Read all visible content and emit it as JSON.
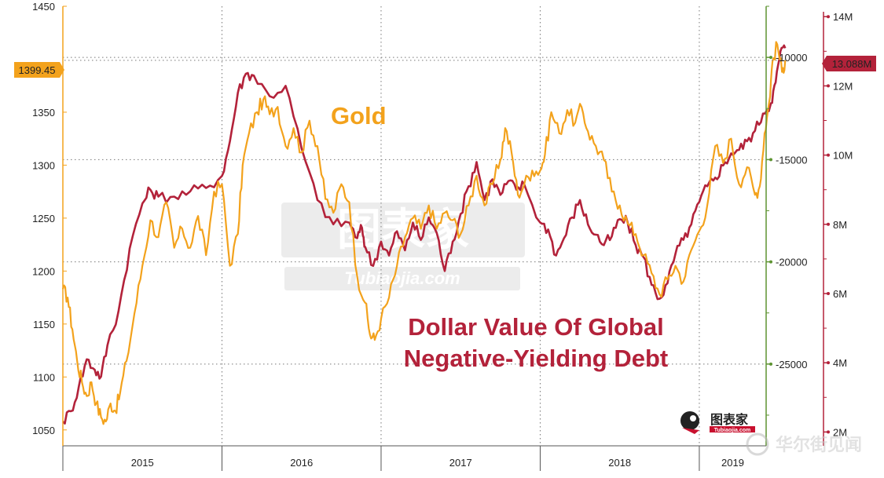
{
  "chart_data": {
    "type": "line",
    "x_axis": {
      "year_labels": [
        "2015",
        "2016",
        "2017",
        "2018",
        "2019"
      ],
      "range": [
        2015.0,
        2019.42
      ]
    },
    "axes": {
      "left": {
        "ticks": [
          "1050",
          "1100",
          "1150",
          "1200",
          "1250",
          "1300",
          "1350",
          "1450"
        ],
        "range": [
          1035,
          1450
        ]
      },
      "right_green": {
        "ticks": [
          "-10000",
          "-15000",
          "-20000",
          "-25000"
        ],
        "range": [
          -29000,
          -7500
        ]
      },
      "right_red": {
        "ticks": [
          "2M",
          "4M",
          "6M",
          "8M",
          "10M",
          "12M",
          "14M"
        ],
        "range": [
          1.6,
          14.3
        ]
      }
    },
    "price_tags": {
      "gold": "1399.45",
      "debt": "13.088M"
    },
    "colors": {
      "gold": "#F3A21C",
      "debt": "#B3223A",
      "green_axis": "#5E9432",
      "grid": "#777777"
    },
    "series": [
      {
        "name": "Gold",
        "axis": "left",
        "points": [
          [
            2015.0,
            1183
          ],
          [
            2015.03,
            1175
          ],
          [
            2015.06,
            1145
          ],
          [
            2015.09,
            1115
          ],
          [
            2015.12,
            1095
          ],
          [
            2015.15,
            1082
          ],
          [
            2015.18,
            1095
          ],
          [
            2015.21,
            1075
          ],
          [
            2015.24,
            1062
          ],
          [
            2015.27,
            1058
          ],
          [
            2015.3,
            1075
          ],
          [
            2015.33,
            1068
          ],
          [
            2015.36,
            1085
          ],
          [
            2015.4,
            1115
          ],
          [
            2015.45,
            1160
          ],
          [
            2015.5,
            1205
          ],
          [
            2015.55,
            1248
          ],
          [
            2015.6,
            1232
          ],
          [
            2015.65,
            1265
          ],
          [
            2015.7,
            1222
          ],
          [
            2015.75,
            1240
          ],
          [
            2015.8,
            1222
          ],
          [
            2015.85,
            1252
          ],
          [
            2015.9,
            1215
          ],
          [
            2015.95,
            1275
          ],
          [
            2016.0,
            1282
          ],
          [
            2016.05,
            1205
          ],
          [
            2016.1,
            1235
          ],
          [
            2016.13,
            1300
          ],
          [
            2016.17,
            1330
          ],
          [
            2016.22,
            1350
          ],
          [
            2016.26,
            1362
          ],
          [
            2016.3,
            1348
          ],
          [
            2016.35,
            1355
          ],
          [
            2016.4,
            1318
          ],
          [
            2016.45,
            1335
          ],
          [
            2016.5,
            1312
          ],
          [
            2016.55,
            1342
          ],
          [
            2016.6,
            1318
          ],
          [
            2016.65,
            1268
          ],
          [
            2016.7,
            1255
          ],
          [
            2016.75,
            1282
          ],
          [
            2016.8,
            1265
          ],
          [
            2016.85,
            1195
          ],
          [
            2016.9,
            1170
          ],
          [
            2016.93,
            1140
          ],
          [
            2016.96,
            1135
          ],
          [
            2017.0,
            1155
          ],
          [
            2017.05,
            1175
          ],
          [
            2017.1,
            1205
          ],
          [
            2017.15,
            1232
          ],
          [
            2017.2,
            1250
          ],
          [
            2017.25,
            1240
          ],
          [
            2017.3,
            1262
          ],
          [
            2017.35,
            1240
          ],
          [
            2017.4,
            1255
          ],
          [
            2017.45,
            1248
          ],
          [
            2017.5,
            1235
          ],
          [
            2017.55,
            1262
          ],
          [
            2017.6,
            1290
          ],
          [
            2017.65,
            1262
          ],
          [
            2017.7,
            1282
          ],
          [
            2017.75,
            1305
          ],
          [
            2017.78,
            1335
          ],
          [
            2017.82,
            1312
          ],
          [
            2017.86,
            1272
          ],
          [
            2017.9,
            1282
          ],
          [
            2017.95,
            1295
          ],
          [
            2018.0,
            1295
          ],
          [
            2018.03,
            1310
          ],
          [
            2018.07,
            1350
          ],
          [
            2018.12,
            1330
          ],
          [
            2018.17,
            1352
          ],
          [
            2018.22,
            1340
          ],
          [
            2018.26,
            1355
          ],
          [
            2018.3,
            1332
          ],
          [
            2018.35,
            1318
          ],
          [
            2018.4,
            1305
          ],
          [
            2018.45,
            1275
          ],
          [
            2018.5,
            1262
          ],
          [
            2018.55,
            1245
          ],
          [
            2018.6,
            1235
          ],
          [
            2018.65,
            1215
          ],
          [
            2018.7,
            1198
          ],
          [
            2018.75,
            1178
          ],
          [
            2018.8,
            1192
          ],
          [
            2018.85,
            1205
          ],
          [
            2018.9,
            1190
          ],
          [
            2018.95,
            1220
          ],
          [
            2019.0,
            1238
          ],
          [
            2019.05,
            1262
          ],
          [
            2019.1,
            1318
          ],
          [
            2019.15,
            1302
          ],
          [
            2019.2,
            1325
          ],
          [
            2019.25,
            1282
          ],
          [
            2019.3,
            1298
          ],
          [
            2019.35,
            1272
          ],
          [
            2019.38,
            1280
          ],
          [
            2019.41,
            1330
          ],
          [
            2019.44,
            1360
          ],
          [
            2019.46,
            1398
          ],
          [
            2019.49,
            1414
          ],
          [
            2019.52,
            1388
          ],
          [
            2019.54,
            1399
          ]
        ]
      },
      {
        "name": "Dollar Value Of Global Negative-Yielding Debt",
        "axis": "right_red",
        "points": [
          [
            2015.0,
            2.3
          ],
          [
            2015.05,
            2.6
          ],
          [
            2015.1,
            3.3
          ],
          [
            2015.15,
            4.1
          ],
          [
            2015.2,
            3.8
          ],
          [
            2015.24,
            3.6
          ],
          [
            2015.28,
            4.5
          ],
          [
            2015.35,
            5.5
          ],
          [
            2015.42,
            7.3
          ],
          [
            2015.5,
            8.6
          ],
          [
            2015.55,
            9.0
          ],
          [
            2015.6,
            8.8
          ],
          [
            2015.7,
            8.8
          ],
          [
            2015.8,
            8.95
          ],
          [
            2015.9,
            9.05
          ],
          [
            2016.0,
            9.4
          ],
          [
            2016.05,
            10.4
          ],
          [
            2016.1,
            11.8
          ],
          [
            2016.15,
            12.35
          ],
          [
            2016.2,
            12.3
          ],
          [
            2016.3,
            11.7
          ],
          [
            2016.4,
            12.0
          ],
          [
            2016.5,
            10.2
          ],
          [
            2016.6,
            8.7
          ],
          [
            2016.7,
            8.0
          ],
          [
            2016.8,
            8.05
          ],
          [
            2016.85,
            7.6
          ],
          [
            2016.88,
            7.9
          ],
          [
            2016.9,
            7.35
          ],
          [
            2016.95,
            6.8
          ],
          [
            2017.0,
            7.5
          ],
          [
            2017.05,
            7.1
          ],
          [
            2017.1,
            7.8
          ],
          [
            2017.15,
            7.25
          ],
          [
            2017.2,
            8.05
          ],
          [
            2017.25,
            7.55
          ],
          [
            2017.3,
            8.2
          ],
          [
            2017.35,
            7.75
          ],
          [
            2017.4,
            6.65
          ],
          [
            2017.45,
            7.5
          ],
          [
            2017.5,
            8.3
          ],
          [
            2017.55,
            9.1
          ],
          [
            2017.6,
            9.8
          ],
          [
            2017.65,
            8.7
          ],
          [
            2017.7,
            9.3
          ],
          [
            2017.75,
            8.85
          ],
          [
            2017.8,
            9.25
          ],
          [
            2017.85,
            9.0
          ],
          [
            2017.9,
            9.15
          ],
          [
            2018.0,
            8.05
          ],
          [
            2018.05,
            7.85
          ],
          [
            2018.1,
            7.1
          ],
          [
            2018.15,
            7.6
          ],
          [
            2018.2,
            8.2
          ],
          [
            2018.25,
            8.7
          ],
          [
            2018.3,
            8.0
          ],
          [
            2018.35,
            7.7
          ],
          [
            2018.4,
            7.4
          ],
          [
            2018.45,
            7.65
          ],
          [
            2018.5,
            8.15
          ],
          [
            2018.55,
            8.05
          ],
          [
            2018.6,
            7.4
          ],
          [
            2018.65,
            7.05
          ],
          [
            2018.7,
            6.25
          ],
          [
            2018.75,
            5.85
          ],
          [
            2018.8,
            6.3
          ],
          [
            2018.85,
            7.15
          ],
          [
            2018.9,
            7.55
          ],
          [
            2018.95,
            8.0
          ],
          [
            2019.0,
            8.65
          ],
          [
            2019.05,
            9.1
          ],
          [
            2019.1,
            9.35
          ],
          [
            2019.15,
            9.7
          ],
          [
            2019.2,
            10.05
          ],
          [
            2019.25,
            10.15
          ],
          [
            2019.3,
            10.4
          ],
          [
            2019.35,
            10.7
          ],
          [
            2019.4,
            11.2
          ],
          [
            2019.45,
            11.5
          ],
          [
            2019.48,
            12.1
          ],
          [
            2019.51,
            13.0
          ],
          [
            2019.54,
            13.09
          ]
        ]
      }
    ],
    "annotations": {
      "gold_label": "Gold",
      "debt_label_line1": "Dollar Value Of Global",
      "debt_label_line2": "Negative-Yielding Debt"
    },
    "grid": true
  },
  "watermarks": {
    "center_cn": "图表家",
    "center_en": "Tubiaojia.com",
    "bottom_logo_cn": "图表家",
    "bottom_logo_en": "Tubiaojia.com",
    "corner": "华尔街见闻"
  }
}
